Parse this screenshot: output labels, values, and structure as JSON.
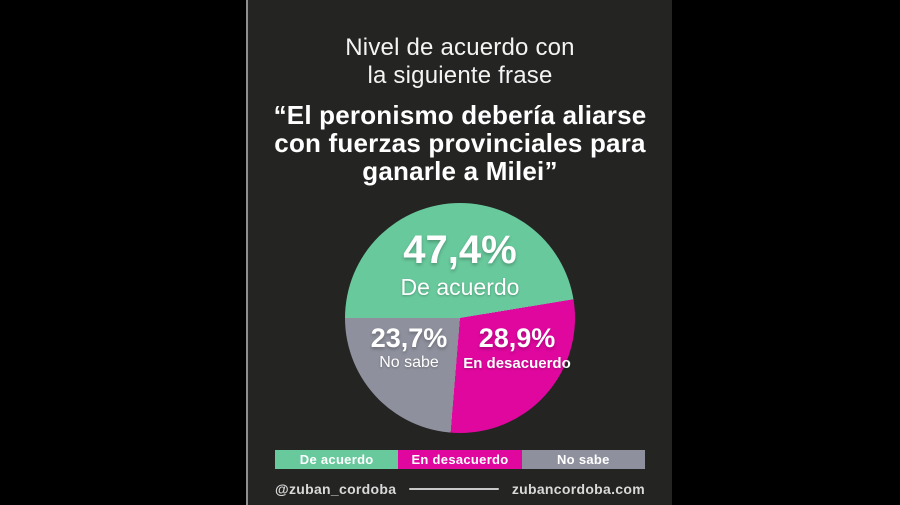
{
  "header": {
    "title_line1": "Nivel de acuerdo con",
    "title_line2": "la siguiente frase"
  },
  "quote": {
    "line1": "“El peronismo debería aliarse",
    "line2": "con fuerzas provinciales para",
    "line3": "ganarle a Milei”"
  },
  "chart_data": {
    "type": "pie",
    "title": "Nivel de acuerdo con la siguiente frase",
    "subtitle": "“El peronismo debería aliarse con fuerzas provinciales para ganarle a Milei”",
    "start_angle_deg_clockwise_from_top": 270,
    "legend_position": "bottom",
    "slices": [
      {
        "label": "De acuerdo",
        "value": 47.4,
        "display": "47,4%",
        "color": "#68c99c"
      },
      {
        "label": "En desacuerdo",
        "value": 28.9,
        "display": "28,9%",
        "color": "#e0079f"
      },
      {
        "label": "No sabe",
        "value": 23.7,
        "display": "23,7%",
        "color": "#8e909d"
      }
    ]
  },
  "footer": {
    "handle": "@zuban_cordoba",
    "website": "zubancordoba.com"
  },
  "colors": {
    "outer_bg": "#000000",
    "panel_bg": "#242423",
    "text": "#ffffff",
    "footer_text": "#d9d9d9"
  }
}
